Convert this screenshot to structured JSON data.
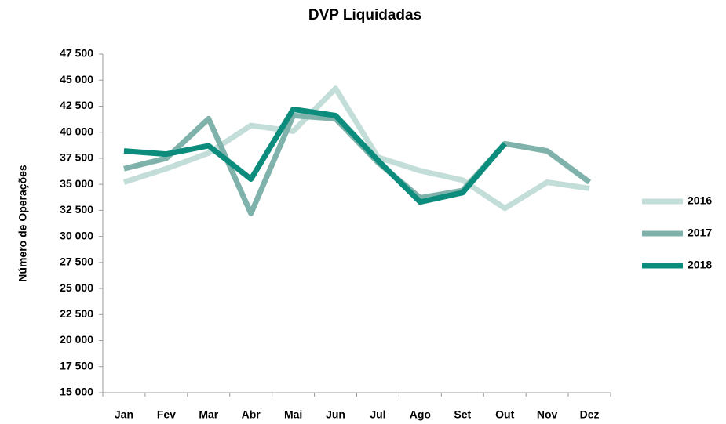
{
  "chart_data": {
    "type": "line",
    "title": "DVP Liquidadas",
    "y_label": "Número de Operações",
    "categories": [
      "Jan",
      "Fev",
      "Mar",
      "Abr",
      "Mai",
      "Jun",
      "Jul",
      "Ago",
      "Set",
      "Out",
      "Nov",
      "Dez"
    ],
    "series": [
      {
        "name": "2016",
        "color": "#c3ddd8",
        "values": [
          35200,
          36500,
          38000,
          40650,
          40100,
          44200,
          37600,
          36300,
          35400,
          32700,
          35200,
          34600
        ]
      },
      {
        "name": "2017",
        "color": "#7fb2aa",
        "values": [
          36500,
          37500,
          41300,
          32200,
          41600,
          41300,
          37100,
          33700,
          34400,
          38900,
          38200,
          35200
        ]
      },
      {
        "name": "2018",
        "color": "#0b8c7c",
        "values": [
          38200,
          37900,
          38700,
          35500,
          42200,
          41600,
          37300,
          33300,
          34200,
          38900,
          null,
          null
        ]
      }
    ],
    "ylim": [
      15000,
      47500
    ],
    "yticks": [
      {
        "value": 15000,
        "label": "15 000"
      },
      {
        "value": 17500,
        "label": "17 500"
      },
      {
        "value": 20000,
        "label": "20 000"
      },
      {
        "value": 22500,
        "label": "22 500"
      },
      {
        "value": 25000,
        "label": "25 000"
      },
      {
        "value": 27500,
        "label": "27 500"
      },
      {
        "value": 30000,
        "label": "30 000"
      },
      {
        "value": 32500,
        "label": "32 500"
      },
      {
        "value": 35000,
        "label": "35 000"
      },
      {
        "value": 37500,
        "label": "37 500"
      },
      {
        "value": 40000,
        "label": "40 000"
      },
      {
        "value": 42500,
        "label": "42 500"
      },
      {
        "value": 45000,
        "label": "45 000"
      },
      {
        "value": 47500,
        "label": "47 500"
      }
    ],
    "grid": false,
    "legend": "right"
  }
}
